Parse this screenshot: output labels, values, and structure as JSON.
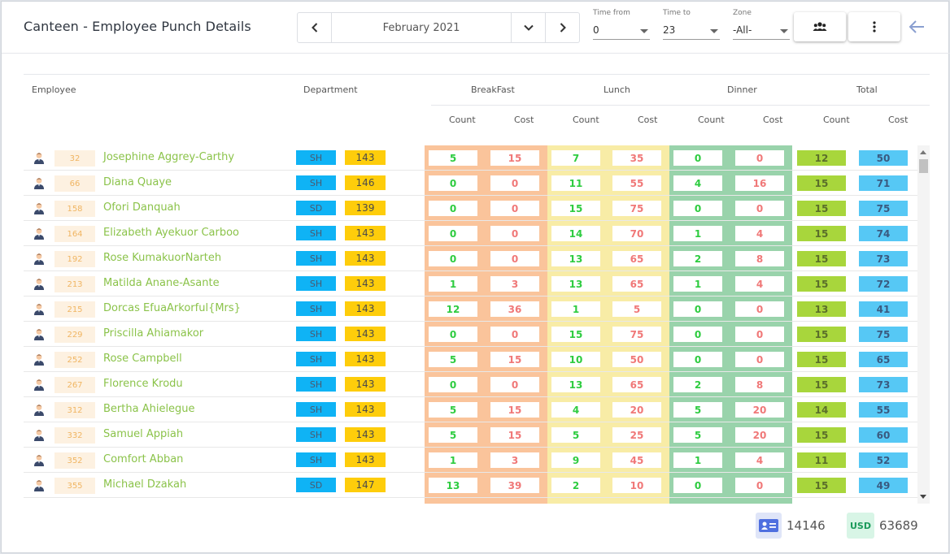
{
  "header": {
    "title": "Canteen - Employee Punch Details",
    "month": "February 2021",
    "time_from": {
      "label": "Time from",
      "value": "0"
    },
    "time_to": {
      "label": "Time to",
      "value": "23"
    },
    "zone": {
      "label": "Zone",
      "value": "-All-"
    }
  },
  "columns": {
    "employee": "Employee",
    "department": "Department",
    "groups": [
      "BreakFast",
      "Lunch",
      "Dinner",
      "Total"
    ],
    "count": "Count",
    "cost": "Cost"
  },
  "colors": {
    "breakfast": "#fac49b",
    "lunch": "#f8eca6",
    "dinner": "#99d3ab",
    "name": "#8bc34a",
    "department": "#0fb3f5",
    "designation": "#fecd0b"
  },
  "rows": [
    {
      "id": "32",
      "name": "Josephine Aggrey-Carthy",
      "dept": "SH",
      "code": "143",
      "b": [
        "5",
        "15"
      ],
      "l": [
        "7",
        "35"
      ],
      "d": [
        "0",
        "0"
      ],
      "t": [
        "12",
        "50"
      ]
    },
    {
      "id": "66",
      "name": "Diana Quaye",
      "dept": "SH",
      "code": "146",
      "b": [
        "0",
        "0"
      ],
      "l": [
        "11",
        "55"
      ],
      "d": [
        "4",
        "16"
      ],
      "t": [
        "15",
        "71"
      ]
    },
    {
      "id": "158",
      "name": "Ofori Danquah",
      "dept": "SD",
      "code": "139",
      "b": [
        "0",
        "0"
      ],
      "l": [
        "15",
        "75"
      ],
      "d": [
        "0",
        "0"
      ],
      "t": [
        "15",
        "75"
      ]
    },
    {
      "id": "164",
      "name": "Elizabeth Ayekuor Carboo",
      "dept": "SH",
      "code": "143",
      "b": [
        "0",
        "0"
      ],
      "l": [
        "14",
        "70"
      ],
      "d": [
        "1",
        "4"
      ],
      "t": [
        "15",
        "74"
      ]
    },
    {
      "id": "192",
      "name": "Rose KumakuorNarteh",
      "dept": "SH",
      "code": "143",
      "b": [
        "0",
        "0"
      ],
      "l": [
        "13",
        "65"
      ],
      "d": [
        "2",
        "8"
      ],
      "t": [
        "15",
        "73"
      ]
    },
    {
      "id": "213",
      "name": "Matilda Anane-Asante",
      "dept": "SH",
      "code": "143",
      "b": [
        "1",
        "3"
      ],
      "l": [
        "13",
        "65"
      ],
      "d": [
        "1",
        "4"
      ],
      "t": [
        "15",
        "72"
      ]
    },
    {
      "id": "215",
      "name": "Dorcas EfuaArkorful{Mrs}",
      "dept": "SH",
      "code": "143",
      "b": [
        "12",
        "36"
      ],
      "l": [
        "1",
        "5"
      ],
      "d": [
        "0",
        "0"
      ],
      "t": [
        "13",
        "41"
      ]
    },
    {
      "id": "229",
      "name": "Priscilla Ahiamakor",
      "dept": "SH",
      "code": "143",
      "b": [
        "0",
        "0"
      ],
      "l": [
        "15",
        "75"
      ],
      "d": [
        "0",
        "0"
      ],
      "t": [
        "15",
        "75"
      ]
    },
    {
      "id": "252",
      "name": "Rose Campbell",
      "dept": "SH",
      "code": "143",
      "b": [
        "5",
        "15"
      ],
      "l": [
        "10",
        "50"
      ],
      "d": [
        "0",
        "0"
      ],
      "t": [
        "15",
        "65"
      ]
    },
    {
      "id": "267",
      "name": "Florence Krodu",
      "dept": "SH",
      "code": "143",
      "b": [
        "0",
        "0"
      ],
      "l": [
        "13",
        "65"
      ],
      "d": [
        "2",
        "8"
      ],
      "t": [
        "15",
        "73"
      ]
    },
    {
      "id": "312",
      "name": "Bertha Ahielegue",
      "dept": "SH",
      "code": "143",
      "b": [
        "5",
        "15"
      ],
      "l": [
        "4",
        "20"
      ],
      "d": [
        "5",
        "20"
      ],
      "t": [
        "14",
        "55"
      ]
    },
    {
      "id": "332",
      "name": "Samuel Appiah",
      "dept": "SH",
      "code": "143",
      "b": [
        "5",
        "15"
      ],
      "l": [
        "5",
        "25"
      ],
      "d": [
        "5",
        "20"
      ],
      "t": [
        "15",
        "60"
      ]
    },
    {
      "id": "352",
      "name": "Comfort Abban",
      "dept": "SH",
      "code": "143",
      "b": [
        "1",
        "3"
      ],
      "l": [
        "9",
        "45"
      ],
      "d": [
        "1",
        "4"
      ],
      "t": [
        "11",
        "52"
      ]
    },
    {
      "id": "355",
      "name": "Michael Dzakah",
      "dept": "SD",
      "code": "147",
      "b": [
        "13",
        "39"
      ],
      "l": [
        "2",
        "10"
      ],
      "d": [
        "0",
        "0"
      ],
      "t": [
        "15",
        "49"
      ]
    }
  ],
  "footer": {
    "employees_total": "14146",
    "currency": "USD",
    "cost_total": "63689"
  }
}
